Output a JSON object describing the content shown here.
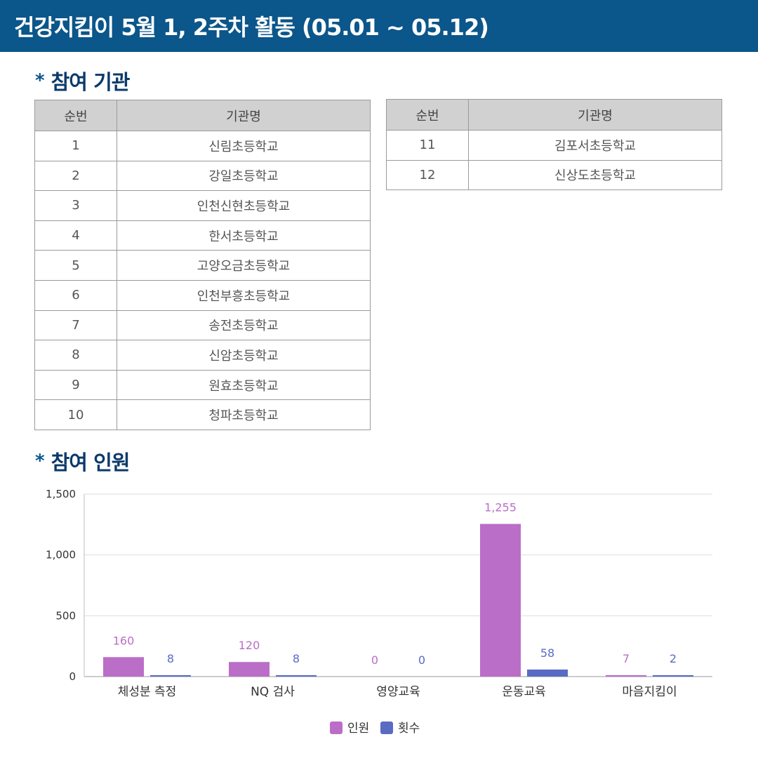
{
  "header": {
    "title": "건강지킴이 5월 1, 2주차 활동 (05.01 ~ 05.12)"
  },
  "sections": {
    "institutions_title": "참여 기관",
    "participants_title": "참여 인원",
    "bullet": "*"
  },
  "institutions": {
    "columns": [
      "순번",
      "기관명"
    ],
    "left_rows": [
      [
        "1",
        "신림초등학교"
      ],
      [
        "2",
        "강일초등학교"
      ],
      [
        "3",
        "인천신현초등학교"
      ],
      [
        "4",
        "한서초등학교"
      ],
      [
        "5",
        "고양오금초등학교"
      ],
      [
        "6",
        "인천부흥초등학교"
      ],
      [
        "7",
        "송전초등학교"
      ],
      [
        "8",
        "신암초등학교"
      ],
      [
        "9",
        "원효초등학교"
      ],
      [
        "10",
        "청파초등학교"
      ]
    ],
    "right_rows": [
      [
        "11",
        "김포서초등학교"
      ],
      [
        "12",
        "신상도초등학교"
      ]
    ]
  },
  "chart_data": {
    "type": "bar",
    "categories": [
      "체성분 측정",
      "NQ 검사",
      "영양교육",
      "운동교육",
      "마음지킴이"
    ],
    "series": [
      {
        "name": "인원",
        "values": [
          160,
          120,
          0,
          1255,
          7
        ],
        "labels": [
          "160",
          "120",
          "0",
          "1,255",
          "7"
        ],
        "color": "#bb6ec8"
      },
      {
        "name": "횟수",
        "values": [
          8,
          8,
          0,
          58,
          2
        ],
        "labels": [
          "8",
          "8",
          "0",
          "58",
          "2"
        ],
        "color": "#5a6bc4"
      }
    ],
    "ylim": [
      0,
      1500
    ],
    "yticks": [
      0,
      500,
      1000,
      1500
    ],
    "ytick_labels": [
      "0",
      "500",
      "1,000",
      "1,500"
    ],
    "grid": true,
    "legend_position": "bottom-center"
  }
}
